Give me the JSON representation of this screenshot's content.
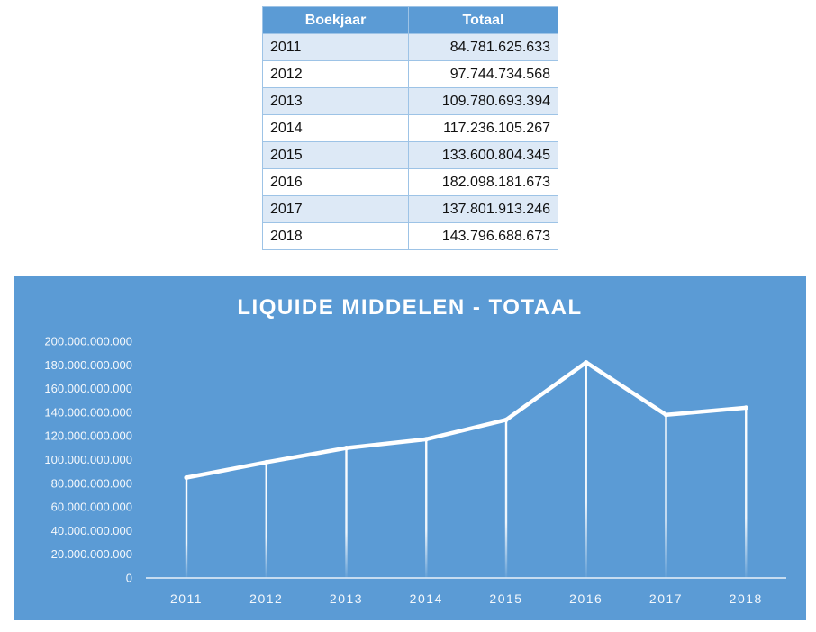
{
  "table": {
    "headers": [
      "Boekjaar",
      "Totaal"
    ],
    "rows": [
      [
        "2011",
        "84.781.625.633"
      ],
      [
        "2012",
        "97.744.734.568"
      ],
      [
        "2013",
        "109.780.693.394"
      ],
      [
        "2014",
        "117.236.105.267"
      ],
      [
        "2015",
        "133.600.804.345"
      ],
      [
        "2016",
        "182.098.181.673"
      ],
      [
        "2017",
        "137.801.913.246"
      ],
      [
        "2018",
        "143.796.688.673"
      ]
    ]
  },
  "chart_data": {
    "type": "line",
    "title": "LIQUIDE MIDDELEN - TOTAAL",
    "xlabel": "",
    "ylabel": "",
    "categories": [
      "2011",
      "2012",
      "2013",
      "2014",
      "2015",
      "2016",
      "2017",
      "2018"
    ],
    "values": [
      84781625633,
      97744734568,
      109780693394,
      117236105267,
      133600804345,
      182098181673,
      137801913246,
      143796688673
    ],
    "ylim": [
      0,
      200000000000
    ],
    "yticks": [
      "0",
      "20.000.000.000",
      "40.000.000.000",
      "60.000.000.000",
      "80.000.000.000",
      "100.000.000.000",
      "120.000.000.000",
      "140.000.000.000",
      "160.000.000.000",
      "180.000.000.000",
      "200.000.000.000"
    ],
    "grid": false,
    "drop_lines": true,
    "colors": {
      "background": "#5b9bd5",
      "line": "#ffffff",
      "text": "#ffffff"
    }
  }
}
